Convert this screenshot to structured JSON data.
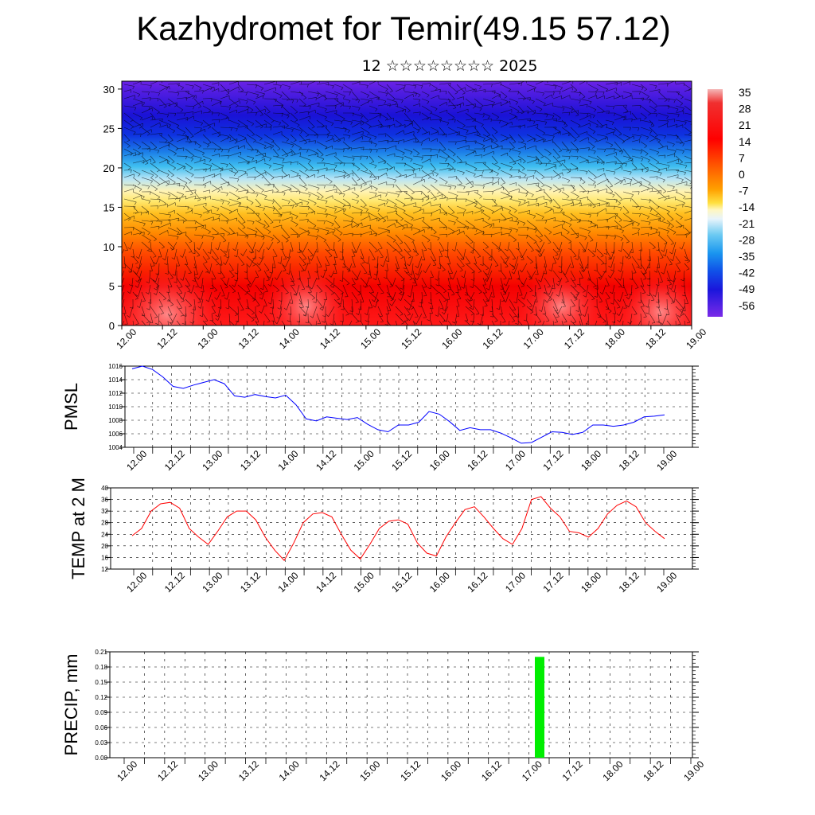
{
  "title": "Kazhydromet for Temir(49.15 57.12)",
  "subtitle": "12 ☆☆☆☆☆☆☆☆ 2025",
  "colors": {
    "pmsl_line": "#0000ff",
    "temp_line": "#ff0000",
    "precip_bar": "#00ee00"
  },
  "chart_data": [
    {
      "type": "heatmap",
      "name": "cross-section",
      "x_ticks": [
        "12.00",
        "12.12",
        "13.00",
        "13.12",
        "14.00",
        "14.12",
        "15.00",
        "15.12",
        "16.00",
        "16.12",
        "17.00",
        "17.12",
        "18.00",
        "18.12",
        "19.00"
      ],
      "y_ticks": [
        0,
        5,
        10,
        15,
        20,
        25,
        30
      ],
      "ylim": [
        0,
        31
      ],
      "colorbar_labels": [
        "35",
        "28",
        "21",
        "14",
        "7",
        "0",
        "-7",
        "-14",
        "-21",
        "-28",
        "-35",
        "-42",
        "-49",
        "-56"
      ],
      "overlay": "wind barbs"
    },
    {
      "type": "line",
      "ylabel": "PMSL",
      "ylim": [
        1004,
        1016
      ],
      "y_ticks": [
        "1016",
        "1014",
        "1012",
        "1010",
        "1008",
        "1006",
        "1004"
      ],
      "x_ticks": [
        "12.00",
        "12.12",
        "13.00",
        "13.12",
        "14.00",
        "14.12",
        "15.00",
        "15.12",
        "16.00",
        "16.12",
        "17.00",
        "17.12",
        "18.00",
        "18.12",
        "19.00"
      ],
      "values": [
        1015.6,
        1016.0,
        1015.5,
        1014.4,
        1013.0,
        1012.7,
        1013.2,
        1013.6,
        1014.0,
        1013.4,
        1011.6,
        1011.4,
        1011.8,
        1011.5,
        1011.3,
        1011.7,
        1010.3,
        1008.2,
        1007.9,
        1008.5,
        1008.3,
        1008.1,
        1008.4,
        1007.4,
        1006.6,
        1006.3,
        1007.3,
        1007.3,
        1007.7,
        1009.3,
        1008.9,
        1007.8,
        1006.5,
        1006.9,
        1006.6,
        1006.6,
        1006.1,
        1005.4,
        1004.6,
        1004.7,
        1005.5,
        1006.3,
        1006.2,
        1005.9,
        1006.2,
        1007.3,
        1007.3,
        1007.1,
        1007.3,
        1007.7,
        1008.5,
        1008.6,
        1008.8
      ]
    },
    {
      "type": "line",
      "ylabel": "TEMP at 2 M",
      "ylim": [
        12,
        40
      ],
      "y_ticks": [
        "40",
        "36",
        "32",
        "28",
        "24",
        "20",
        "16",
        "12"
      ],
      "x_ticks": [
        "12.00",
        "12.12",
        "13.00",
        "13.12",
        "14.00",
        "14.12",
        "15.00",
        "15.12",
        "16.00",
        "16.12",
        "17.00",
        "17.12",
        "18.00",
        "18.12",
        "19.00"
      ],
      "values": [
        23.5,
        26,
        32,
        34.5,
        35,
        33,
        26,
        23,
        20.5,
        25,
        30,
        32,
        32,
        29,
        23,
        18.5,
        15,
        21,
        28,
        31,
        31.5,
        30,
        24,
        18.5,
        15.5,
        20.5,
        26,
        28.5,
        29,
        27.5,
        21,
        17.5,
        16.5,
        23,
        28,
        32.5,
        33.5,
        30,
        26,
        22.5,
        20.5,
        26,
        36,
        37,
        33,
        30,
        25,
        24.5,
        23,
        26,
        31,
        34,
        35.5,
        33.5,
        28,
        25,
        22.5
      ]
    },
    {
      "type": "bar",
      "ylabel": "PRECIP, mm",
      "ylim": [
        0,
        0.21
      ],
      "y_ticks": [
        "0.21",
        "0.18",
        "0.15",
        "0.12",
        "0.09",
        "0.06",
        "0.03",
        "0.00"
      ],
      "x_ticks": [
        "12.00",
        "12.12",
        "13.00",
        "13.12",
        "14.00",
        "14.12",
        "15.00",
        "15.12",
        "16.00",
        "16.12",
        "17.00",
        "17.12",
        "18.00",
        "18.12",
        "19.00"
      ],
      "bars": [
        {
          "x_hours": 126,
          "value": 0.2
        }
      ]
    }
  ]
}
